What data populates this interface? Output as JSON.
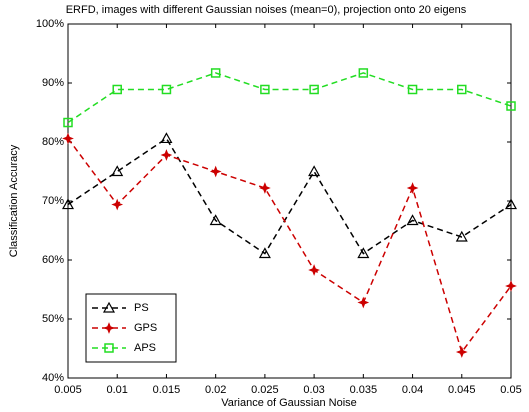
{
  "chart_data": {
    "type": "line",
    "title": "ERFD, images with different Gaussian noises (mean=0), projection onto 20 eigens",
    "x_label": "Variance of Gaussian Noise",
    "y_label": "Classification Accuracy",
    "x": [
      0.005,
      0.01,
      0.015,
      0.02,
      0.025,
      0.03,
      0.035,
      0.04,
      0.045,
      0.05
    ],
    "series": [
      {
        "name": "PS",
        "color": "#000000",
        "marker": "triangle",
        "values": [
          69.4,
          75,
          80.6,
          66.7,
          61.1,
          75,
          61.1,
          66.7,
          63.9,
          69.4
        ]
      },
      {
        "name": "GPS",
        "color": "#cc0000",
        "marker": "star",
        "values": [
          80.6,
          69.4,
          77.8,
          75,
          72.2,
          58.3,
          52.8,
          72.2,
          44.4,
          55.6
        ]
      },
      {
        "name": "APS",
        "color": "#22dd22",
        "marker": "square",
        "values": [
          83.3,
          88.9,
          88.9,
          91.7,
          88.9,
          88.9,
          91.7,
          88.9,
          88.9,
          86.1
        ]
      }
    ],
    "xlim": [
      0.005,
      0.05
    ],
    "xticks": [
      0.005,
      0.01,
      0.015,
      0.02,
      0.025,
      0.03,
      0.035,
      0.04,
      0.045,
      0.05
    ],
    "ylim": [
      40,
      100
    ],
    "yticks": [
      {
        "value": 40,
        "label": "40%"
      },
      {
        "value": 50,
        "label": "50%"
      },
      {
        "value": 60,
        "label": "60%"
      },
      {
        "value": 70,
        "label": "70%"
      },
      {
        "value": 80,
        "label": "80%"
      },
      {
        "value": 90,
        "label": "90%"
      },
      {
        "value": 100,
        "label": "100%"
      }
    ],
    "legend": "lower left",
    "line_style": "dashed"
  }
}
